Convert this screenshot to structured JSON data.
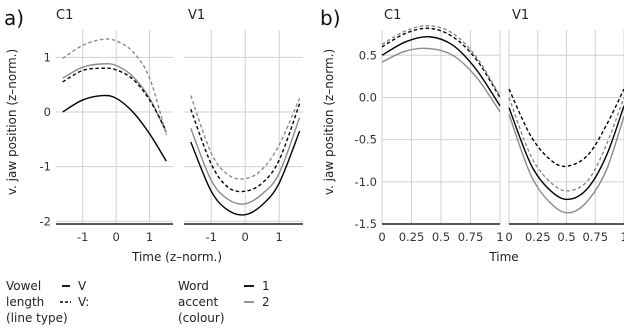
{
  "figure": {
    "panels": [
      "a)",
      "b)"
    ],
    "legend_vowel": {
      "title_lines": [
        "Vowel",
        "length",
        "(line type)"
      ],
      "items": [
        "V",
        "V:"
      ]
    },
    "legend_accent": {
      "title_lines": [
        "Word",
        "accent",
        "(colour)"
      ],
      "items": [
        "1",
        "2"
      ]
    },
    "colors": {
      "accent1": "#000000",
      "accent2": "#8a8a8a",
      "grid": "#d0d0d0"
    }
  },
  "chart_data": [
    {
      "type": "line",
      "panel": "a)",
      "facet": "C1",
      "xlabel": "Time (z–norm.)",
      "ylabel": "v. jaw position (z–norm.)",
      "xlim": [
        -1.8,
        1.7
      ],
      "ylim": [
        -2.05,
        1.5
      ],
      "xticks": [
        -1,
        0,
        1
      ],
      "yticks": [
        -2,
        -1,
        0,
        1
      ],
      "series": [
        {
          "accent": "1",
          "length": "V",
          "x": [
            -1.6,
            -1.0,
            -0.4,
            0.0,
            0.5,
            1.0,
            1.5
          ],
          "y": [
            0.0,
            0.22,
            0.3,
            0.25,
            0.0,
            -0.4,
            -0.9
          ]
        },
        {
          "accent": "2",
          "length": "V",
          "x": [
            -1.6,
            -1.0,
            -0.4,
            0.0,
            0.5,
            1.0,
            1.5
          ],
          "y": [
            0.62,
            0.82,
            0.88,
            0.85,
            0.65,
            0.25,
            -0.38
          ]
        },
        {
          "accent": "1",
          "length": "V:",
          "x": [
            -1.6,
            -1.0,
            -0.4,
            0.0,
            0.5,
            1.0,
            1.5
          ],
          "y": [
            0.55,
            0.76,
            0.8,
            0.77,
            0.6,
            0.22,
            -0.35
          ]
        },
        {
          "accent": "2",
          "length": "V:",
          "x": [
            -1.6,
            -1.0,
            -0.4,
            0.0,
            0.5,
            1.0,
            1.5
          ],
          "y": [
            0.98,
            1.22,
            1.33,
            1.3,
            1.1,
            0.62,
            -0.42
          ]
        }
      ]
    },
    {
      "type": "line",
      "panel": "a)",
      "facet": "V1",
      "xlabel": "Time (z–norm.)",
      "xlim": [
        -1.8,
        1.7
      ],
      "ylim": [
        -2.05,
        1.5
      ],
      "xticks": [
        -1,
        0,
        1
      ],
      "series": [
        {
          "accent": "1",
          "length": "V",
          "x": [
            -1.6,
            -1.0,
            -0.5,
            0.0,
            0.5,
            1.0,
            1.6
          ],
          "y": [
            -0.55,
            -1.45,
            -1.8,
            -1.88,
            -1.7,
            -1.3,
            -0.35
          ]
        },
        {
          "accent": "2",
          "length": "V",
          "x": [
            -1.6,
            -1.0,
            -0.5,
            0.0,
            0.5,
            1.0,
            1.6
          ],
          "y": [
            -0.3,
            -1.25,
            -1.6,
            -1.68,
            -1.5,
            -1.12,
            -0.1
          ]
        },
        {
          "accent": "1",
          "length": "V:",
          "x": [
            -1.6,
            -1.0,
            -0.5,
            0.0,
            0.5,
            1.0,
            1.6
          ],
          "y": [
            0.05,
            -0.95,
            -1.38,
            -1.45,
            -1.3,
            -0.88,
            0.15
          ]
        },
        {
          "accent": "2",
          "length": "V:",
          "x": [
            -1.6,
            -1.0,
            -0.5,
            0.0,
            0.5,
            1.0,
            1.6
          ],
          "y": [
            0.3,
            -0.75,
            -1.15,
            -1.22,
            -1.05,
            -0.6,
            0.25
          ]
        }
      ]
    },
    {
      "type": "line",
      "panel": "b)",
      "facet": "C1",
      "xlabel": "Time",
      "ylabel": "v. jaw position (z–norm.)",
      "xlim": [
        0,
        1
      ],
      "ylim": [
        -1.5,
        0.8
      ],
      "xticks": [
        0,
        0.25,
        0.5,
        0.75,
        1
      ],
      "yticks": [
        -1.5,
        -1.0,
        -0.5,
        0.0,
        0.5
      ],
      "series": [
        {
          "accent": "1",
          "length": "V",
          "x": [
            0,
            0.2,
            0.4,
            0.6,
            0.8,
            1.0
          ],
          "y": [
            0.5,
            0.66,
            0.72,
            0.62,
            0.33,
            -0.1
          ]
        },
        {
          "accent": "2",
          "length": "V",
          "x": [
            0,
            0.2,
            0.4,
            0.6,
            0.8,
            1.0
          ],
          "y": [
            0.42,
            0.55,
            0.58,
            0.5,
            0.24,
            -0.17
          ]
        },
        {
          "accent": "1",
          "length": "V:",
          "x": [
            0,
            0.2,
            0.4,
            0.6,
            0.8,
            1.0
          ],
          "y": [
            0.6,
            0.76,
            0.82,
            0.72,
            0.45,
            0.0
          ]
        },
        {
          "accent": "2",
          "length": "V:",
          "x": [
            0,
            0.2,
            0.4,
            0.6,
            0.8,
            1.0
          ],
          "y": [
            0.63,
            0.79,
            0.85,
            0.76,
            0.48,
            0.02
          ]
        }
      ]
    },
    {
      "type": "line",
      "panel": "b)",
      "facet": "V1",
      "xlabel": "Time",
      "xlim": [
        0,
        1
      ],
      "ylim": [
        -1.5,
        0.8
      ],
      "xticks": [
        0,
        0.25,
        0.5,
        0.75,
        1
      ],
      "series": [
        {
          "accent": "1",
          "length": "V",
          "x": [
            0,
            0.2,
            0.4,
            0.55,
            0.7,
            0.85,
            1.0
          ],
          "y": [
            -0.12,
            -0.82,
            -1.15,
            -1.2,
            -1.05,
            -0.68,
            -0.1
          ]
        },
        {
          "accent": "2",
          "length": "V",
          "x": [
            0,
            0.2,
            0.4,
            0.55,
            0.7,
            0.85,
            1.0
          ],
          "y": [
            -0.2,
            -0.95,
            -1.3,
            -1.36,
            -1.2,
            -0.85,
            -0.22
          ]
        },
        {
          "accent": "1",
          "length": "V:",
          "x": [
            0,
            0.2,
            0.4,
            0.55,
            0.7,
            0.85,
            1.0
          ],
          "y": [
            0.1,
            -0.48,
            -0.78,
            -0.8,
            -0.66,
            -0.32,
            0.1
          ]
        },
        {
          "accent": "2",
          "length": "V:",
          "x": [
            0,
            0.2,
            0.4,
            0.55,
            0.7,
            0.85,
            1.0
          ],
          "y": [
            0.0,
            -0.72,
            -1.05,
            -1.1,
            -0.96,
            -0.55,
            0.0
          ]
        }
      ]
    }
  ]
}
